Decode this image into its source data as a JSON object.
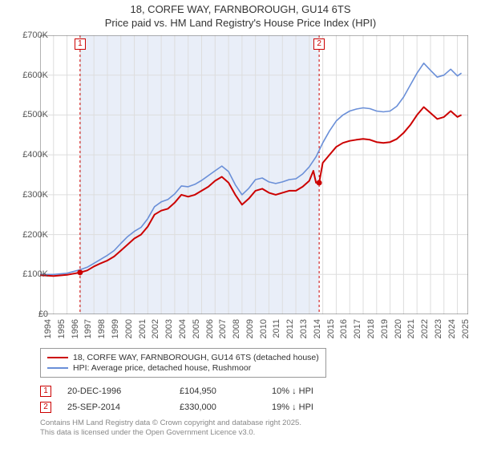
{
  "title_line1": "18, CORFE WAY, FARNBOROUGH, GU14 6TS",
  "title_line2": "Price paid vs. HM Land Registry's House Price Index (HPI)",
  "chart": {
    "type": "line",
    "background_color": "#ffffff",
    "grid_color": "#dddddd",
    "axis_color": "#666666",
    "title_fontsize": 13,
    "tick_fontsize": 11,
    "xlim": [
      1994,
      2025.8
    ],
    "ylim": [
      0,
      700000
    ],
    "yticks": [
      0,
      100000,
      200000,
      300000,
      400000,
      500000,
      600000,
      700000
    ],
    "ytick_labels": [
      "£0",
      "£100K",
      "£200K",
      "£300K",
      "£400K",
      "£500K",
      "£600K",
      "£700K"
    ],
    "xticks": [
      1994,
      1995,
      1996,
      1997,
      1998,
      1999,
      2000,
      2001,
      2002,
      2003,
      2004,
      2005,
      2006,
      2007,
      2008,
      2009,
      2010,
      2011,
      2012,
      2013,
      2014,
      2015,
      2016,
      2017,
      2018,
      2019,
      2020,
      2021,
      2022,
      2023,
      2024,
      2025
    ],
    "highlight_band": {
      "from": 1996.97,
      "to": 2014.73,
      "fill": "#e9eef8"
    },
    "series": [
      {
        "name": "price_paid",
        "label": "18, CORFE WAY, FARNBOROUGH, GU14 6TS (detached house)",
        "color": "#cc0000",
        "line_width": 2,
        "data": [
          [
            1994.0,
            98000
          ],
          [
            1995.0,
            96000
          ],
          [
            1996.0,
            99000
          ],
          [
            1996.97,
            104950
          ],
          [
            1997.5,
            110000
          ],
          [
            1998.0,
            120000
          ],
          [
            1998.5,
            128000
          ],
          [
            1999.0,
            135000
          ],
          [
            1999.5,
            145000
          ],
          [
            2000.0,
            160000
          ],
          [
            2000.5,
            175000
          ],
          [
            2001.0,
            190000
          ],
          [
            2001.5,
            200000
          ],
          [
            2002.0,
            220000
          ],
          [
            2002.5,
            250000
          ],
          [
            2003.0,
            260000
          ],
          [
            2003.5,
            265000
          ],
          [
            2004.0,
            280000
          ],
          [
            2004.5,
            300000
          ],
          [
            2005.0,
            295000
          ],
          [
            2005.5,
            300000
          ],
          [
            2006.0,
            310000
          ],
          [
            2006.5,
            320000
          ],
          [
            2007.0,
            335000
          ],
          [
            2007.5,
            345000
          ],
          [
            2008.0,
            330000
          ],
          [
            2008.5,
            300000
          ],
          [
            2009.0,
            275000
          ],
          [
            2009.5,
            290000
          ],
          [
            2010.0,
            310000
          ],
          [
            2010.5,
            315000
          ],
          [
            2011.0,
            305000
          ],
          [
            2011.5,
            300000
          ],
          [
            2012.0,
            305000
          ],
          [
            2012.5,
            310000
          ],
          [
            2013.0,
            310000
          ],
          [
            2013.5,
            320000
          ],
          [
            2014.0,
            335000
          ],
          [
            2014.3,
            360000
          ],
          [
            2014.5,
            330000
          ],
          [
            2014.73,
            330000
          ],
          [
            2015.0,
            380000
          ],
          [
            2015.5,
            400000
          ],
          [
            2016.0,
            420000
          ],
          [
            2016.5,
            430000
          ],
          [
            2017.0,
            435000
          ],
          [
            2017.5,
            438000
          ],
          [
            2018.0,
            440000
          ],
          [
            2018.5,
            438000
          ],
          [
            2019.0,
            432000
          ],
          [
            2019.5,
            430000
          ],
          [
            2020.0,
            432000
          ],
          [
            2020.5,
            440000
          ],
          [
            2021.0,
            455000
          ],
          [
            2021.5,
            475000
          ],
          [
            2022.0,
            500000
          ],
          [
            2022.5,
            520000
          ],
          [
            2023.0,
            505000
          ],
          [
            2023.5,
            490000
          ],
          [
            2024.0,
            495000
          ],
          [
            2024.5,
            510000
          ],
          [
            2025.0,
            495000
          ],
          [
            2025.3,
            500000
          ]
        ]
      },
      {
        "name": "hpi",
        "label": "HPI: Average price, detached house, Rushmoor",
        "color": "#6a8fd8",
        "line_width": 1.6,
        "data": [
          [
            1994.0,
            100000
          ],
          [
            1995.0,
            100000
          ],
          [
            1996.0,
            103000
          ],
          [
            1997.0,
            112000
          ],
          [
            1997.5,
            118000
          ],
          [
            1998.0,
            128000
          ],
          [
            1998.5,
            138000
          ],
          [
            1999.0,
            148000
          ],
          [
            1999.5,
            160000
          ],
          [
            2000.0,
            178000
          ],
          [
            2000.5,
            195000
          ],
          [
            2001.0,
            208000
          ],
          [
            2001.5,
            218000
          ],
          [
            2002.0,
            240000
          ],
          [
            2002.5,
            270000
          ],
          [
            2003.0,
            282000
          ],
          [
            2003.5,
            288000
          ],
          [
            2004.0,
            302000
          ],
          [
            2004.5,
            322000
          ],
          [
            2005.0,
            320000
          ],
          [
            2005.5,
            326000
          ],
          [
            2006.0,
            336000
          ],
          [
            2006.5,
            348000
          ],
          [
            2007.0,
            360000
          ],
          [
            2007.5,
            372000
          ],
          [
            2008.0,
            358000
          ],
          [
            2008.5,
            325000
          ],
          [
            2009.0,
            300000
          ],
          [
            2009.5,
            316000
          ],
          [
            2010.0,
            338000
          ],
          [
            2010.5,
            342000
          ],
          [
            2011.0,
            332000
          ],
          [
            2011.5,
            328000
          ],
          [
            2012.0,
            332000
          ],
          [
            2012.5,
            338000
          ],
          [
            2013.0,
            340000
          ],
          [
            2013.5,
            352000
          ],
          [
            2014.0,
            370000
          ],
          [
            2014.5,
            395000
          ],
          [
            2015.0,
            430000
          ],
          [
            2015.5,
            460000
          ],
          [
            2016.0,
            485000
          ],
          [
            2016.5,
            500000
          ],
          [
            2017.0,
            510000
          ],
          [
            2017.5,
            515000
          ],
          [
            2018.0,
            518000
          ],
          [
            2018.5,
            516000
          ],
          [
            2019.0,
            510000
          ],
          [
            2019.5,
            508000
          ],
          [
            2020.0,
            510000
          ],
          [
            2020.5,
            522000
          ],
          [
            2021.0,
            545000
          ],
          [
            2021.5,
            575000
          ],
          [
            2022.0,
            605000
          ],
          [
            2022.5,
            630000
          ],
          [
            2023.0,
            612000
          ],
          [
            2023.5,
            595000
          ],
          [
            2024.0,
            600000
          ],
          [
            2024.5,
            615000
          ],
          [
            2025.0,
            598000
          ],
          [
            2025.3,
            605000
          ]
        ]
      }
    ],
    "sale_markers": [
      {
        "id": "1",
        "x": 1996.97,
        "y": 104950
      },
      {
        "id": "2",
        "x": 2014.73,
        "y": 330000
      }
    ]
  },
  "legend": {
    "items": [
      {
        "color": "#cc0000",
        "label": "18, CORFE WAY, FARNBOROUGH, GU14 6TS (detached house)"
      },
      {
        "color": "#6a8fd8",
        "label": "HPI: Average price, detached house, Rushmoor"
      }
    ]
  },
  "transactions": [
    {
      "marker": "1",
      "date": "20-DEC-1996",
      "price": "£104,950",
      "pct": "10% ↓ HPI"
    },
    {
      "marker": "2",
      "date": "25-SEP-2014",
      "price": "£330,000",
      "pct": "19% ↓ HPI"
    }
  ],
  "footer_line1": "Contains HM Land Registry data © Crown copyright and database right 2025.",
  "footer_line2": "This data is licensed under the Open Government Licence v3.0."
}
